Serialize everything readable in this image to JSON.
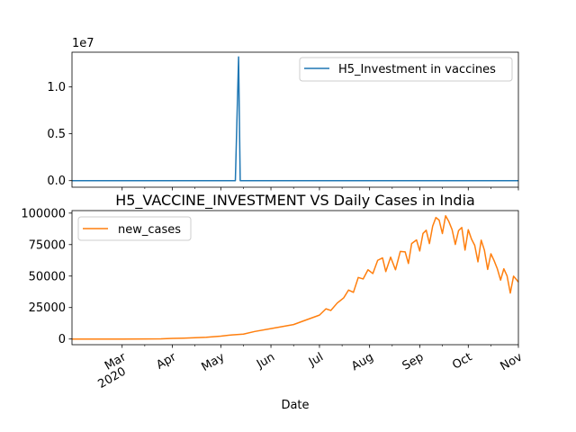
{
  "chart_data": [
    {
      "type": "line",
      "title": "",
      "xlabel": "",
      "ylabel": "",
      "y_offset_label": "1e7",
      "ylim": [
        -700000,
        13700000
      ],
      "yticks": [
        {
          "value": 0,
          "label": "0.0"
        },
        {
          "value": 5000000,
          "label": "0.5"
        },
        {
          "value": 10000000,
          "label": "1.0"
        }
      ],
      "legend": {
        "placement": "upper right"
      },
      "series": [
        {
          "name": "H5_Investment in vaccines",
          "color": "#1f77b4",
          "points": [
            [
              "2020-01-30",
              0
            ],
            [
              "2020-05-10",
              0
            ],
            [
              "2020-05-12",
              13200000
            ],
            [
              "2020-05-13",
              0
            ],
            [
              "2020-11-01",
              0
            ]
          ]
        }
      ]
    },
    {
      "type": "line",
      "title": "H5_VACCINE_INVESTMENT VS Daily Cases in India",
      "xlabel": "Date",
      "ylabel": "",
      "ylim": [
        -4500,
        102000
      ],
      "yticks": [
        {
          "value": 0,
          "label": "0"
        },
        {
          "value": 25000,
          "label": "25000"
        },
        {
          "value": 50000,
          "label": "50000"
        },
        {
          "value": 75000,
          "label": "75000"
        },
        {
          "value": 100000,
          "label": "100000"
        }
      ],
      "xlim": [
        "2020-01-30",
        "2020-11-01"
      ],
      "xticks": [
        {
          "date": "2020-03-01",
          "label": "Mar",
          "sublabel": "2020"
        },
        {
          "date": "2020-04-01",
          "label": "Apr"
        },
        {
          "date": "2020-05-01",
          "label": "May"
        },
        {
          "date": "2020-06-01",
          "label": "Jun"
        },
        {
          "date": "2020-07-01",
          "label": "Jul"
        },
        {
          "date": "2020-08-01",
          "label": "Aug"
        },
        {
          "date": "2020-09-01",
          "label": "Sep"
        },
        {
          "date": "2020-10-01",
          "label": "Oct"
        },
        {
          "date": "2020-11-01",
          "label": "Nov"
        }
      ],
      "legend": {
        "placement": "upper left"
      },
      "series": [
        {
          "name": "new_cases",
          "color": "#ff7f0e",
          "points": [
            [
              "2020-01-30",
              1
            ],
            [
              "2020-03-01",
              5
            ],
            [
              "2020-03-15",
              40
            ],
            [
              "2020-03-25",
              100
            ],
            [
              "2020-04-01",
              500
            ],
            [
              "2020-04-08",
              700
            ],
            [
              "2020-04-15",
              1000
            ],
            [
              "2020-04-22",
              1400
            ],
            [
              "2020-05-01",
              2300
            ],
            [
              "2020-05-08",
              3300
            ],
            [
              "2020-05-15",
              3900
            ],
            [
              "2020-05-22",
              6000
            ],
            [
              "2020-06-01",
              8300
            ],
            [
              "2020-06-08",
              9900
            ],
            [
              "2020-06-15",
              11500
            ],
            [
              "2020-06-22",
              14800
            ],
            [
              "2020-07-01",
              19000
            ],
            [
              "2020-07-05",
              24000
            ],
            [
              "2020-07-08",
              22700
            ],
            [
              "2020-07-12",
              28600
            ],
            [
              "2020-07-16",
              32700
            ],
            [
              "2020-07-19",
              38900
            ],
            [
              "2020-07-22",
              37100
            ],
            [
              "2020-07-25",
              48900
            ],
            [
              "2020-07-28",
              47700
            ],
            [
              "2020-07-31",
              55000
            ],
            [
              "2020-08-03",
              52000
            ],
            [
              "2020-08-06",
              62500
            ],
            [
              "2020-08-09",
              64400
            ],
            [
              "2020-08-11",
              53600
            ],
            [
              "2020-08-14",
              65000
            ],
            [
              "2020-08-17",
              55000
            ],
            [
              "2020-08-20",
              69600
            ],
            [
              "2020-08-23",
              69200
            ],
            [
              "2020-08-25",
              60000
            ],
            [
              "2020-08-27",
              75800
            ],
            [
              "2020-08-30",
              78700
            ],
            [
              "2020-09-01",
              69900
            ],
            [
              "2020-09-03",
              83800
            ],
            [
              "2020-09-05",
              86400
            ],
            [
              "2020-09-07",
              75800
            ],
            [
              "2020-09-09",
              89700
            ],
            [
              "2020-09-11",
              96500
            ],
            [
              "2020-09-13",
              94400
            ],
            [
              "2020-09-15",
              83800
            ],
            [
              "2020-09-17",
              97900
            ],
            [
              "2020-09-19",
              93300
            ],
            [
              "2020-09-21",
              86900
            ],
            [
              "2020-09-23",
              75100
            ],
            [
              "2020-09-25",
              86100
            ],
            [
              "2020-09-27",
              88600
            ],
            [
              "2020-09-29",
              70600
            ],
            [
              "2020-10-01",
              86800
            ],
            [
              "2020-10-03",
              79400
            ],
            [
              "2020-10-05",
              74400
            ],
            [
              "2020-10-07",
              61300
            ],
            [
              "2020-10-09",
              78500
            ],
            [
              "2020-10-11",
              70500
            ],
            [
              "2020-10-13",
              55300
            ],
            [
              "2020-10-15",
              67700
            ],
            [
              "2020-10-17",
              62200
            ],
            [
              "2020-10-19",
              55700
            ],
            [
              "2020-10-21",
              46800
            ],
            [
              "2020-10-23",
              55800
            ],
            [
              "2020-10-25",
              50100
            ],
            [
              "2020-10-27",
              36500
            ],
            [
              "2020-10-29",
              49900
            ],
            [
              "2020-10-31",
              46900
            ],
            [
              "2020-11-01",
              45200
            ]
          ]
        }
      ]
    }
  ]
}
